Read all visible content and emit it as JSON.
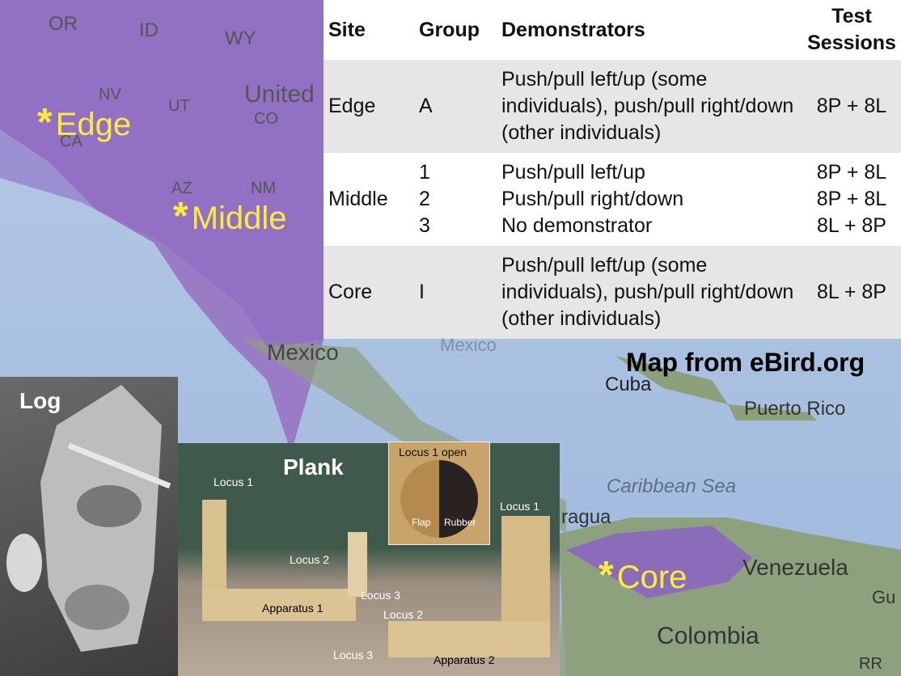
{
  "map": {
    "labels": [
      "OR",
      "ID",
      "WY",
      "NV",
      "UT",
      "United",
      "CO",
      "CA",
      "AZ",
      "NM",
      "Mexico",
      "Mexico",
      "Cuba",
      "Puerto Rico",
      "Caribbean Sea",
      "ragua",
      "Venezuela",
      "Gu",
      "Colombia",
      "RR"
    ],
    "sites": [
      "Edge",
      "Middle",
      "Core"
    ],
    "credit": "Map from eBird.org"
  },
  "table": {
    "headers": [
      "Site",
      "Group",
      "Demonstrators",
      "Test Sessions"
    ],
    "rows": [
      {
        "site": "Edge",
        "groups": [
          "A"
        ],
        "demonstrators": [
          "Push/pull left/up (some individuals), push/pull right/down (other individuals)"
        ],
        "sessions": [
          "8P + 8L"
        ]
      },
      {
        "site": "Middle",
        "groups": [
          "1",
          "2",
          "3"
        ],
        "demonstrators": [
          "Push/pull left/up",
          "Push/pull right/down",
          "No demonstrator"
        ],
        "sessions": [
          "8P + 8L",
          "8P + 8L",
          "8L + 8P"
        ]
      },
      {
        "site": "Core",
        "groups": [
          "I"
        ],
        "demonstrators": [
          "Push/pull left/up (some individuals), push/pull right/down (other individuals)"
        ],
        "sessions": [
          "8L + 8P"
        ]
      }
    ]
  },
  "photos": {
    "log": {
      "title": "Log"
    },
    "plank": {
      "title": "Plank",
      "labels": [
        "Locus 1",
        "Locus 2",
        "Locus 3",
        "Apparatus 1",
        "Locus 1",
        "Locus 2",
        "Locus 3",
        "Apparatus 2"
      ]
    },
    "inset": {
      "title": "Locus 1 open",
      "labels": [
        "Flap",
        "Rubber"
      ]
    }
  }
}
